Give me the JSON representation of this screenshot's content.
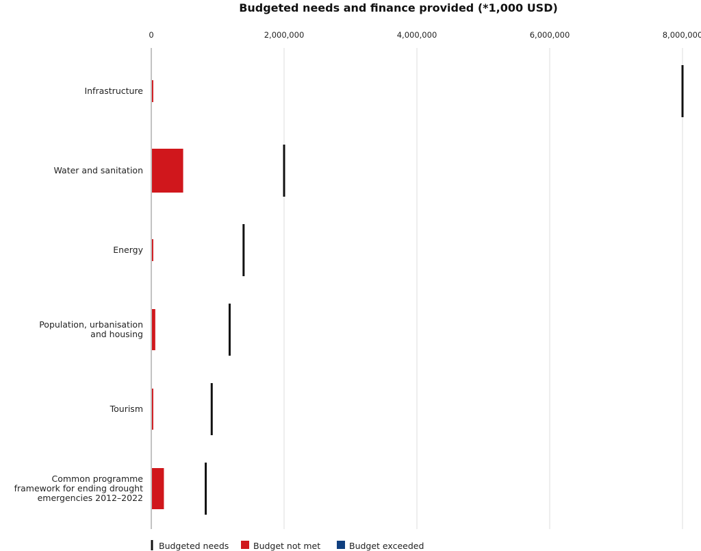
{
  "chart_data": {
    "type": "bar",
    "orientation": "horizontal",
    "title": "Budgeted needs and finance provided (*1,000 USD)",
    "xlabel": "",
    "ylabel": "",
    "xlim": [
      0,
      8000000
    ],
    "x_ticks": [
      "0",
      "2,000,000",
      "4,000,000",
      "6,000,000",
      "8,000,000"
    ],
    "x_tick_values": [
      0,
      2000000,
      4000000,
      6000000,
      8000000
    ],
    "axis_position": "top",
    "grid": true,
    "categories": [
      [
        "Infrastructure"
      ],
      [
        "Water and sanitation"
      ],
      [
        "Energy"
      ],
      [
        "Population, urbanisation",
        "and housing"
      ],
      [
        "Tourism"
      ],
      [
        "Common programme",
        "framework for ending drought",
        "emergencies 2012–2022"
      ]
    ],
    "series": [
      {
        "name": "Budget not met",
        "color": "#d0171c",
        "values": [
          30000,
          480000,
          30000,
          60000,
          30000,
          190000
        ]
      },
      {
        "name": "Budgeted needs",
        "color": "#111111",
        "marker": "vertical-line",
        "values": [
          8000000,
          2000000,
          1390000,
          1180000,
          910000,
          820000
        ]
      },
      {
        "name": "Budget exceeded",
        "color": "#0f3f7f",
        "values": [
          0,
          0,
          0,
          0,
          0,
          0
        ]
      }
    ],
    "legend": {
      "position": "bottom-left",
      "items": [
        {
          "label": "Budgeted needs",
          "marker": "line",
          "color": "#111111"
        },
        {
          "label": "Budget not met",
          "marker": "square",
          "color": "#d0171c"
        },
        {
          "label": "Budget exceeded",
          "marker": "square",
          "color": "#0f3f7f"
        }
      ]
    }
  }
}
